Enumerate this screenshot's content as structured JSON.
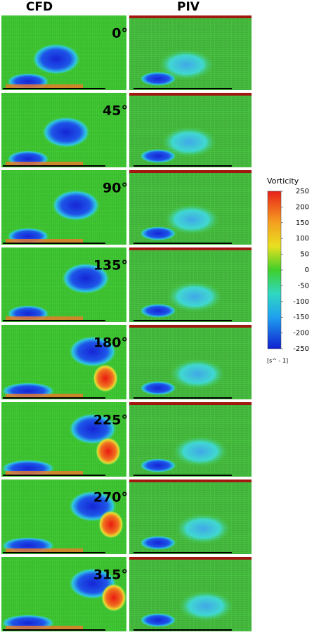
{
  "columns": [
    "CFD",
    "PIV"
  ],
  "rows": [
    {
      "angle": "0°"
    },
    {
      "angle": "45°"
    },
    {
      "angle": "90°"
    },
    {
      "angle": "135°"
    },
    {
      "angle": "180°"
    },
    {
      "angle": "225°"
    },
    {
      "angle": "270°"
    },
    {
      "angle": "315°"
    }
  ],
  "colorbar": {
    "title": "Vorticity",
    "ticks": [
      250,
      200,
      150,
      100,
      50,
      0,
      -50,
      -100,
      -150,
      -200,
      -250
    ],
    "unit": "[s^ - 1]"
  }
}
